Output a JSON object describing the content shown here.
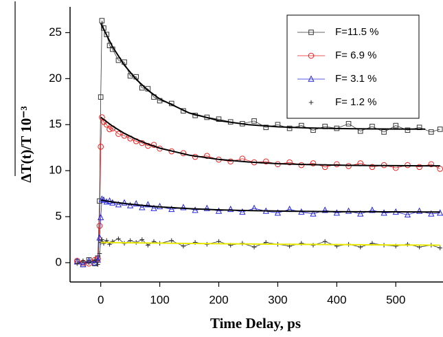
{
  "chart_data": {
    "type": "scatter",
    "xlabel": "Time Delay, ps",
    "ylabel": "ΔT(t)/T 10⁻³",
    "x": [
      -40,
      -30,
      -20,
      -10,
      -5,
      -2,
      0,
      2,
      5,
      10,
      15,
      20,
      30,
      40,
      50,
      60,
      70,
      80,
      90,
      100,
      120,
      140,
      160,
      180,
      200,
      220,
      240,
      260,
      280,
      300,
      320,
      340,
      360,
      380,
      400,
      420,
      440,
      460,
      480,
      500,
      520,
      540,
      560,
      575
    ],
    "series": [
      {
        "name": "F=11.5 %",
        "color": "#333333",
        "marker": "square",
        "values": [
          0.1,
          -0.2,
          0.3,
          -0.1,
          0.5,
          6.7,
          18.0,
          26.3,
          25.5,
          24.8,
          23.6,
          23.2,
          22.0,
          21.8,
          20.3,
          20.2,
          19.0,
          18.9,
          18.0,
          17.6,
          17.3,
          16.5,
          16.0,
          15.8,
          15.6,
          15.3,
          15.1,
          15.4,
          14.7,
          15.0,
          14.6,
          14.9,
          14.4,
          14.8,
          14.6,
          15.1,
          14.3,
          14.8,
          14.2,
          14.9,
          14.4,
          14.7,
          14.2,
          14.5
        ]
      },
      {
        "name": "F=  6.9 %",
        "color": "#ee1c1c",
        "marker": "circle",
        "values": [
          0.2,
          0.0,
          -0.1,
          0.3,
          0.4,
          4.0,
          12.6,
          15.8,
          15.3,
          15.0,
          14.5,
          14.6,
          14.0,
          13.8,
          13.5,
          13.2,
          13.0,
          12.7,
          12.8,
          12.4,
          12.1,
          11.9,
          11.5,
          11.6,
          11.2,
          11.0,
          11.3,
          10.9,
          11.0,
          10.7,
          10.9,
          10.6,
          10.8,
          10.4,
          10.7,
          10.5,
          10.8,
          10.4,
          10.6,
          10.3,
          10.6,
          10.4,
          10.7,
          10.2
        ]
      },
      {
        "name": "F=  3.1 %",
        "color": "#2222dd",
        "marker": "triangle",
        "values": [
          0.1,
          -0.2,
          0.2,
          0.0,
          0.3,
          2.7,
          4.9,
          6.9,
          6.8,
          6.6,
          6.7,
          6.5,
          6.3,
          6.5,
          6.2,
          6.4,
          6.0,
          6.3,
          5.9,
          6.1,
          5.8,
          6.0,
          5.7,
          5.9,
          5.6,
          5.8,
          5.5,
          5.9,
          5.6,
          5.4,
          5.8,
          5.5,
          5.3,
          5.7,
          5.4,
          5.6,
          5.3,
          5.7,
          5.4,
          5.5,
          5.2,
          5.6,
          5.3,
          5.4
        ]
      },
      {
        "name": "F=  1.2 %",
        "color": "#333333",
        "marker": "plus",
        "values": [
          -0.1,
          0.2,
          0.0,
          0.3,
          -0.2,
          1.0,
          2.2,
          2.5,
          2.1,
          2.4,
          2.0,
          2.3,
          2.6,
          2.1,
          2.4,
          2.2,
          2.5,
          1.9,
          2.3,
          2.1,
          2.4,
          1.8,
          2.2,
          2.0,
          2.3,
          1.9,
          2.1,
          1.7,
          2.2,
          2.0,
          1.8,
          2.1,
          1.9,
          2.3,
          1.8,
          2.0,
          1.7,
          2.1,
          1.9,
          1.8,
          2.0,
          1.7,
          1.9,
          1.6
        ]
      }
    ],
    "fits": {
      "x": [
        0,
        20,
        40,
        60,
        80,
        100,
        150,
        200,
        250,
        300,
        350,
        400,
        450,
        500,
        550,
        575
      ],
      "series": [
        {
          "color": "#000000",
          "values": [
            26.0,
            23.46,
            21.47,
            19.93,
            18.73,
            17.79,
            16.27,
            15.44,
            15.0,
            14.77,
            14.64,
            14.58,
            14.54,
            14.52,
            14.51,
            null
          ]
        },
        {
          "color": "#000000",
          "values": [
            15.8,
            14.84,
            14.05,
            13.41,
            12.88,
            12.45,
            11.68,
            11.22,
            10.94,
            10.76,
            10.66,
            10.6,
            10.56,
            10.54,
            10.52,
            10.52
          ]
        },
        {
          "color": "#000000",
          "values": [
            6.8,
            6.6,
            6.43,
            6.29,
            6.17,
            6.06,
            5.87,
            5.74,
            5.66,
            5.61,
            5.57,
            5.54,
            5.53,
            5.52,
            5.51,
            5.51
          ]
        },
        {
          "color": "#e8e800",
          "values": [
            2.2,
            2.18,
            2.16,
            2.15,
            2.13,
            2.12,
            2.09,
            2.06,
            2.03,
            2.0,
            1.98,
            1.96,
            1.94,
            1.92,
            1.91,
            1.9
          ]
        }
      ]
    },
    "xlim": [
      -52,
      580
    ],
    "ylim": [
      -2.1,
      27.8
    ],
    "xticks": [
      0,
      100,
      200,
      300,
      400,
      500
    ],
    "yticks": [
      0,
      5,
      10,
      15,
      20,
      25
    ],
    "legend": "top right"
  }
}
